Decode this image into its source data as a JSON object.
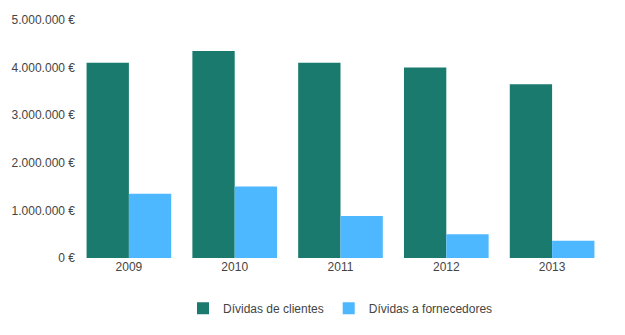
{
  "chart_data": {
    "type": "bar",
    "categories": [
      "2009",
      "2010",
      "2011",
      "2012",
      "2013"
    ],
    "series": [
      {
        "name": "Dívidas de clientes",
        "color": "#1a7a6e",
        "values": [
          4100000,
          4350000,
          4100000,
          4000000,
          3650000
        ]
      },
      {
        "name": "Dívidas a fornecedores",
        "color": "#4db8ff",
        "values": [
          1350000,
          1500000,
          880000,
          500000,
          360000
        ]
      }
    ],
    "ylim": [
      0,
      5000000
    ],
    "yticks": [
      {
        "value": 0,
        "label": "0 €"
      },
      {
        "value": 1000000,
        "label": "1.000.000 €"
      },
      {
        "value": 2000000,
        "label": "2.000.000 €"
      },
      {
        "value": 3000000,
        "label": "3.000.000 €"
      },
      {
        "value": 4000000,
        "label": "4.000.000 €"
      },
      {
        "value": 5000000,
        "label": "5.000.000 €"
      }
    ],
    "grid": false,
    "legend": "bottom"
  }
}
